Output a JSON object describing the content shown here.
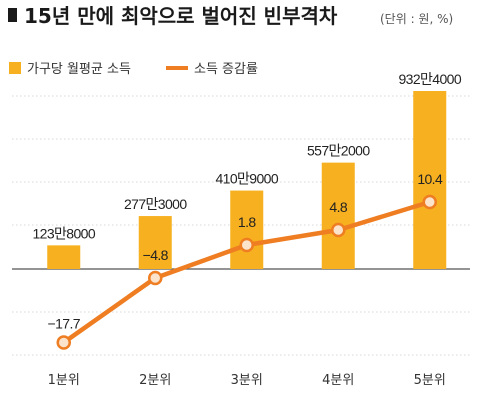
{
  "chart_data": {
    "type": "bar",
    "title": "15년 만에 최악으로 벌어진 빈부격차",
    "subtitle": "(단위 : 원, %)",
    "categories": [
      "1분위",
      "2분위",
      "3분위",
      "4분위",
      "5분위"
    ],
    "series": [
      {
        "name": "가구당 월평균 소득",
        "type": "bar",
        "values": [
          1238000,
          2773000,
          4109000,
          5572000,
          9324000
        ],
        "labels": [
          "123만8000",
          "277만3000",
          "410만9000",
          "557만2000",
          "932만4000"
        ]
      },
      {
        "name": "소득 증감률",
        "type": "line",
        "values": [
          -17.7,
          -4.8,
          1.8,
          4.8,
          10.4
        ],
        "labels": [
          "−17.7",
          "−4.8",
          "1.8",
          "4.8",
          "10.4"
        ]
      }
    ],
    "legend": "top-left",
    "grid": true,
    "colors": {
      "bar": "#F7B01F",
      "line": "#EF7D22",
      "marker_fill": "#FBE3CC",
      "grid": "#d8d8d8",
      "baseline": "#555555",
      "title_bullet": "#1a1a1a"
    }
  }
}
